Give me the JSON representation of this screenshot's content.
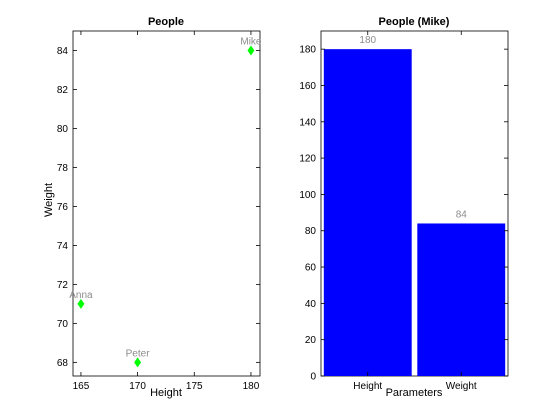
{
  "chart_data": [
    {
      "type": "scatter",
      "title": "People",
      "xlabel": "Height",
      "ylabel": "Weight",
      "xlim": [
        164.3,
        180.8
      ],
      "ylim": [
        67.3,
        85
      ],
      "xticks": [
        165,
        170,
        175,
        180
      ],
      "yticks": [
        68,
        70,
        72,
        74,
        76,
        78,
        80,
        82,
        84
      ],
      "marker_color": "#00ff00",
      "points": [
        {
          "label": "Anna",
          "x": 165,
          "y": 71
        },
        {
          "label": "Peter",
          "x": 170,
          "y": 68
        },
        {
          "label": "Mike",
          "x": 180,
          "y": 84
        }
      ]
    },
    {
      "type": "bar",
      "title": "People (Mike)",
      "xlabel": "Parameters",
      "ylabel": "",
      "ylim": [
        0,
        190
      ],
      "yticks": [
        0,
        20,
        40,
        60,
        80,
        100,
        120,
        140,
        160,
        180
      ],
      "bar_color": "#0000ff",
      "categories": [
        "Height",
        "Weight"
      ],
      "values": [
        180,
        84
      ],
      "data_labels": [
        "180",
        "84"
      ]
    }
  ]
}
